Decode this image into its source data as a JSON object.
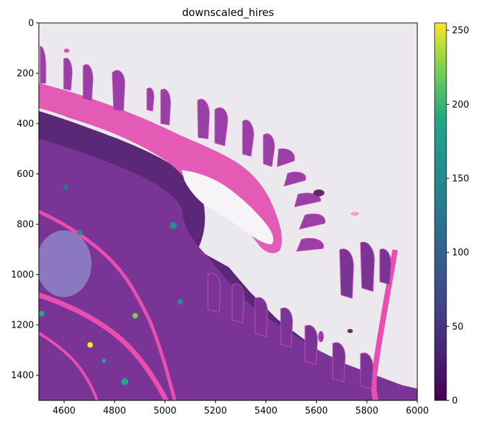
{
  "chart_data": {
    "type": "heatmap",
    "title": "downscaled_hires",
    "xlabel": "",
    "ylabel": "",
    "xlim": [
      4500,
      6000
    ],
    "ylim": [
      1500,
      0
    ],
    "y_inverted": true,
    "x_ticks": [
      4600,
      4800,
      5000,
      5200,
      5400,
      5600,
      5800,
      6000
    ],
    "y_ticks": [
      0,
      200,
      400,
      600,
      800,
      1000,
      1200,
      1400
    ],
    "colorbar": {
      "colormap": "viridis",
      "range": [
        0,
        255
      ],
      "ticks": [
        0,
        50,
        100,
        150,
        200,
        250
      ]
    },
    "background_image": "H&E stained tissue section of intestinal villi",
    "grid": false,
    "colors": {
      "background": "#ece9ee",
      "stroma_pink": "#e94fb0",
      "villus_purple": "#8a3b9c",
      "cell_dark": "#3a1a5c",
      "lumen_white": "#f7f4f8"
    }
  }
}
